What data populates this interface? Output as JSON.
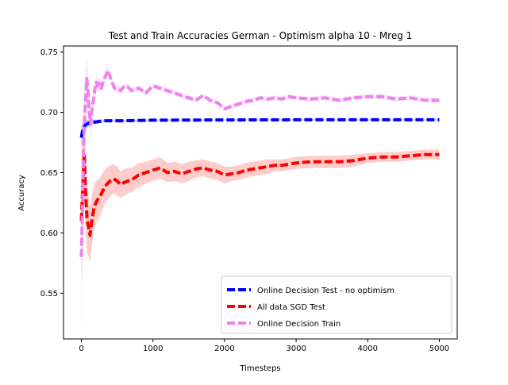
{
  "chart_data": {
    "type": "line",
    "title": "Test and Train Accuracies German - Optimism alpha 10 - Mreg 1",
    "xlabel": "Timesteps",
    "ylabel": "Accuracy",
    "xlim": [
      -250,
      5250
    ],
    "ylim": [
      0.512,
      0.755
    ],
    "xticks": [
      0,
      1000,
      2000,
      3000,
      4000,
      5000
    ],
    "yticks": [
      0.55,
      0.6,
      0.65,
      0.7,
      0.75
    ],
    "xtick_labels": [
      "0",
      "1000",
      "2000",
      "3000",
      "4000",
      "5000"
    ],
    "ytick_labels": [
      "0.55",
      "0.60",
      "0.65",
      "0.70",
      "0.75"
    ],
    "grid": false,
    "legend_position": "lower-right",
    "series": [
      {
        "name": "Online Decision Test - no optimism",
        "color": "#0000ff",
        "x": [
          0,
          20,
          40,
          60,
          100,
          150,
          200,
          300,
          400,
          600,
          1000,
          2000,
          3000,
          4000,
          5000
        ],
        "y": [
          0.679,
          0.686,
          0.688,
          0.69,
          0.691,
          0.692,
          0.692,
          0.693,
          0.693,
          0.693,
          0.6935,
          0.6937,
          0.6938,
          0.6938,
          0.6938
        ],
        "band": [
          0.01,
          0.006,
          0.005,
          0.004,
          0.003,
          0.002,
          0.002,
          0.001,
          0.001,
          0.0008,
          0.0006,
          0.0005,
          0.0005,
          0.0005,
          0.0005
        ]
      },
      {
        "name": "All data SGD Test",
        "color": "#ff0000",
        "x": [
          0,
          20,
          40,
          60,
          80,
          100,
          120,
          150,
          180,
          220,
          260,
          300,
          350,
          400,
          450,
          500,
          550,
          600,
          700,
          800,
          900,
          1000,
          1100,
          1200,
          1300,
          1400,
          1500,
          1600,
          1700,
          1800,
          1900,
          2000,
          2100,
          2200,
          2300,
          2400,
          2500,
          2600,
          2700,
          2800,
          2900,
          3000,
          3200,
          3400,
          3600,
          3800,
          4000,
          4200,
          4400,
          4600,
          4800,
          5000
        ],
        "y": [
          0.61,
          0.64,
          0.665,
          0.63,
          0.61,
          0.605,
          0.598,
          0.612,
          0.622,
          0.627,
          0.63,
          0.635,
          0.64,
          0.643,
          0.645,
          0.643,
          0.64,
          0.642,
          0.644,
          0.648,
          0.65,
          0.652,
          0.654,
          0.65,
          0.651,
          0.649,
          0.651,
          0.653,
          0.654,
          0.652,
          0.651,
          0.648,
          0.649,
          0.65,
          0.652,
          0.653,
          0.654,
          0.655,
          0.656,
          0.656,
          0.657,
          0.658,
          0.659,
          0.659,
          0.659,
          0.66,
          0.662,
          0.663,
          0.663,
          0.664,
          0.665,
          0.665
        ],
        "band": [
          0.05,
          0.04,
          0.035,
          0.03,
          0.027,
          0.025,
          0.023,
          0.021,
          0.019,
          0.017,
          0.016,
          0.015,
          0.014,
          0.013,
          0.012,
          0.012,
          0.011,
          0.011,
          0.01,
          0.01,
          0.009,
          0.009,
          0.009,
          0.008,
          0.008,
          0.008,
          0.008,
          0.007,
          0.007,
          0.007,
          0.007,
          0.007,
          0.006,
          0.006,
          0.006,
          0.006,
          0.006,
          0.006,
          0.005,
          0.005,
          0.005,
          0.005,
          0.005,
          0.005,
          0.005,
          0.005,
          0.004,
          0.004,
          0.004,
          0.004,
          0.004,
          0.004
        ]
      },
      {
        "name": "Online Decision Train",
        "color": "#ee82ee",
        "x": [
          0,
          15,
          30,
          45,
          60,
          75,
          90,
          110,
          130,
          150,
          170,
          190,
          210,
          230,
          250,
          280,
          310,
          340,
          370,
          400,
          430,
          460,
          500,
          550,
          600,
          650,
          700,
          800,
          900,
          1000,
          1100,
          1200,
          1300,
          1400,
          1500,
          1600,
          1700,
          1800,
          1900,
          2000,
          2100,
          2200,
          2300,
          2400,
          2500,
          2600,
          2700,
          2800,
          2900,
          3000,
          3200,
          3400,
          3600,
          3800,
          4000,
          4200,
          4400,
          4600,
          4800,
          5000
        ],
        "y": [
          0.58,
          0.62,
          0.67,
          0.695,
          0.71,
          0.728,
          0.72,
          0.7,
          0.69,
          0.705,
          0.71,
          0.72,
          0.725,
          0.722,
          0.724,
          0.72,
          0.727,
          0.73,
          0.735,
          0.73,
          0.725,
          0.72,
          0.72,
          0.718,
          0.722,
          0.721,
          0.718,
          0.72,
          0.716,
          0.722,
          0.72,
          0.718,
          0.716,
          0.714,
          0.712,
          0.71,
          0.714,
          0.71,
          0.708,
          0.703,
          0.705,
          0.707,
          0.709,
          0.71,
          0.712,
          0.711,
          0.712,
          0.711,
          0.713,
          0.712,
          0.711,
          0.712,
          0.71,
          0.712,
          0.713,
          0.713,
          0.711,
          0.712,
          0.71,
          0.71
        ],
        "band": [
          0.06,
          0.05,
          0.04,
          0.03,
          0.025,
          0.02,
          0.015,
          0.012,
          0.01,
          0.009,
          0.008,
          0.007,
          0.006,
          0.006,
          0.005,
          0.005,
          0.004,
          0.004,
          0.004,
          0.003,
          0.003,
          0.003,
          0.003,
          0.003,
          0.002,
          0.002,
          0.002,
          0.002,
          0.002,
          0.002,
          0.002,
          0.002,
          0.002,
          0.002,
          0.002,
          0.002,
          0.002,
          0.002,
          0.002,
          0.002,
          0.002,
          0.002,
          0.002,
          0.002,
          0.002,
          0.002,
          0.002,
          0.002,
          0.002,
          0.002,
          0.002,
          0.002,
          0.002,
          0.002,
          0.002,
          0.002,
          0.002,
          0.002,
          0.002,
          0.002
        ]
      }
    ]
  }
}
